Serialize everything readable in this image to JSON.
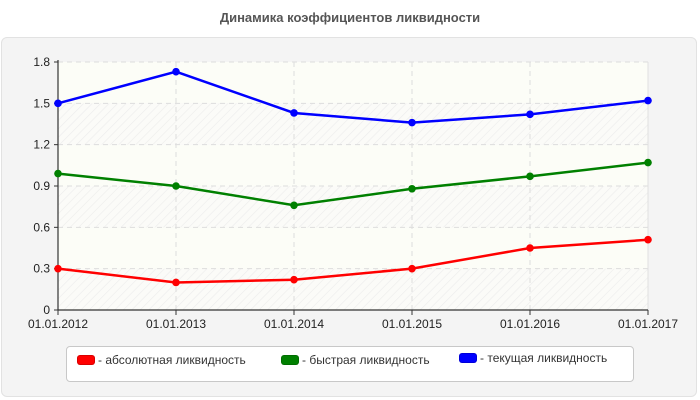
{
  "title": "Динамика коэффициентов ликвидности",
  "chart_data": {
    "type": "line",
    "title": "Динамика коэффициентов ликвидности",
    "xlabel": "",
    "ylabel": "",
    "x": [
      "01.01.2012",
      "01.01.2013",
      "01.01.2014",
      "01.01.2015",
      "01.01.2016",
      "01.01.2017"
    ],
    "yticks": [
      "0",
      "0.3",
      "0.6",
      "0.9",
      "1.2",
      "1.5",
      "1.8"
    ],
    "ylim": [
      0,
      1.8
    ],
    "grid": true,
    "legend_position": "bottom",
    "series": [
      {
        "name": "- абсолютная ликвидность",
        "color": "#ff0000",
        "values": [
          0.3,
          0.2,
          0.22,
          0.3,
          0.45,
          0.51
        ]
      },
      {
        "name": "- быстрая ликвидность",
        "color": "#008000",
        "values": [
          0.99,
          0.9,
          0.76,
          0.88,
          0.97,
          1.07
        ]
      },
      {
        "name": "- текущая ликвидность",
        "color": "#0000ff",
        "values": [
          1.5,
          1.73,
          1.43,
          1.36,
          1.42,
          1.52
        ]
      }
    ]
  },
  "legend": {
    "items": [
      {
        "label": "- абсолютная ликвидность",
        "color": "#ff0000"
      },
      {
        "label": "- быстрая ликвидность",
        "color": "#008000"
      },
      {
        "label": "- текущая ликвидность",
        "color": "#0000ff"
      }
    ]
  }
}
